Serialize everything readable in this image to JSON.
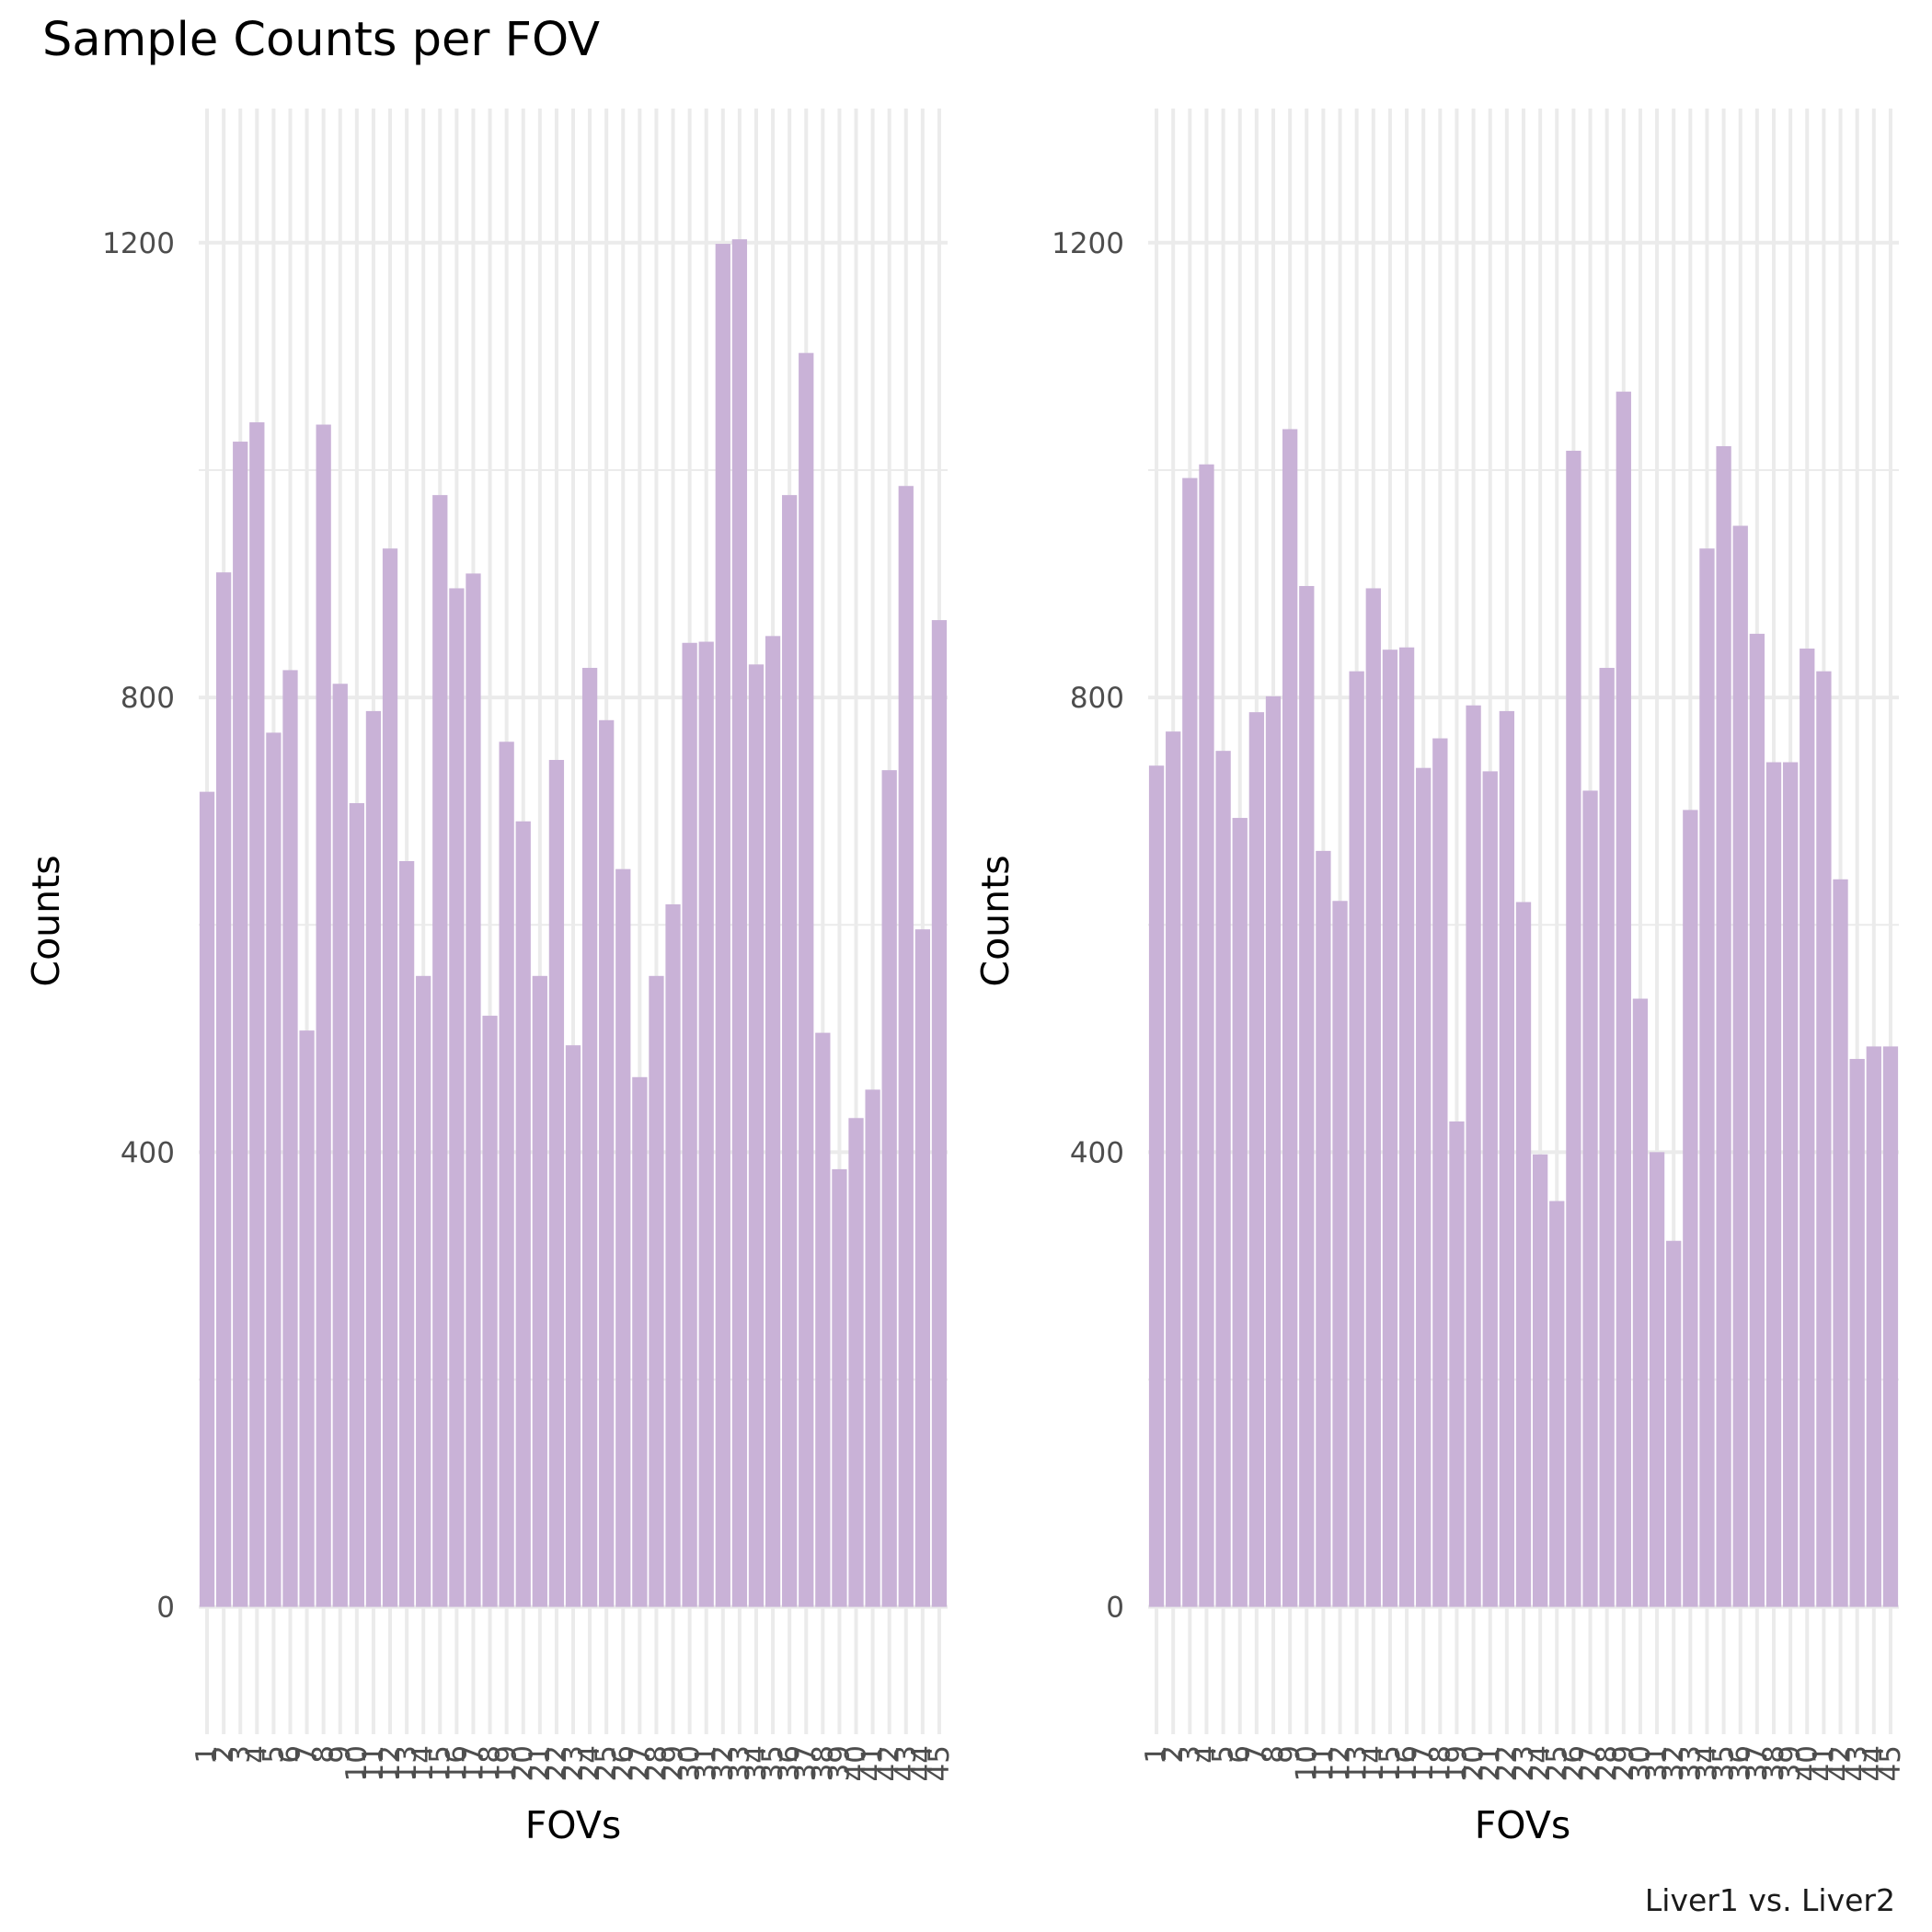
{
  "title": "Sample Counts per FOV",
  "caption": "Liver1 vs. Liver2",
  "bar_color": "#c9b2d7",
  "grid_color": "#ebebeb",
  "chart_data": [
    {
      "type": "bar",
      "xlabel": "FOVs",
      "ylabel": "Counts",
      "ylim": [
        -112,
        1318
      ],
      "yticks": [
        0,
        400,
        800,
        1200
      ],
      "grid": true,
      "categories": [
        "1",
        "2",
        "3",
        "4",
        "5",
        "6",
        "7",
        "8",
        "9",
        "10",
        "11",
        "12",
        "13",
        "14",
        "15",
        "16",
        "17",
        "18",
        "19",
        "20",
        "21",
        "22",
        "23",
        "24",
        "25",
        "26",
        "27",
        "28",
        "29",
        "30",
        "31",
        "32",
        "33",
        "34",
        "35",
        "36",
        "37",
        "38",
        "39",
        "40",
        "41",
        "42",
        "43",
        "44",
        "45"
      ],
      "values": [
        717,
        910,
        1025,
        1042,
        769,
        824,
        507,
        1040,
        812,
        707,
        788,
        931,
        656,
        555,
        978,
        896,
        909,
        520,
        761,
        691,
        555,
        745,
        494,
        826,
        780,
        649,
        466,
        555,
        618,
        848,
        849,
        1199,
        1203,
        829,
        854,
        978,
        1103,
        505,
        385,
        430,
        455,
        736,
        986,
        596,
        868
      ]
    },
    {
      "type": "bar",
      "xlabel": "FOVs",
      "ylabel": "Counts",
      "ylim": [
        -112,
        1318
      ],
      "yticks": [
        0,
        400,
        800,
        1200
      ],
      "grid": true,
      "categories": [
        "1",
        "2",
        "3",
        "4",
        "5",
        "6",
        "7",
        "8",
        "9",
        "10",
        "11",
        "12",
        "13",
        "14",
        "15",
        "16",
        "17",
        "18",
        "19",
        "20",
        "21",
        "22",
        "23",
        "24",
        "25",
        "26",
        "27",
        "28",
        "29",
        "30",
        "31",
        "32",
        "33",
        "34",
        "35",
        "36",
        "37",
        "38",
        "39",
        "40",
        "41",
        "42",
        "43",
        "44",
        "45"
      ],
      "values": [
        740,
        770,
        993,
        1005,
        753,
        694,
        787,
        801,
        1036,
        898,
        665,
        621,
        823,
        896,
        842,
        844,
        738,
        764,
        427,
        793,
        735,
        788,
        620,
        398,
        357,
        1017,
        718,
        826,
        1069,
        535,
        400,
        322,
        701,
        931,
        1021,
        951,
        856,
        743,
        743,
        843,
        823,
        640,
        482,
        493,
        493
      ]
    }
  ]
}
